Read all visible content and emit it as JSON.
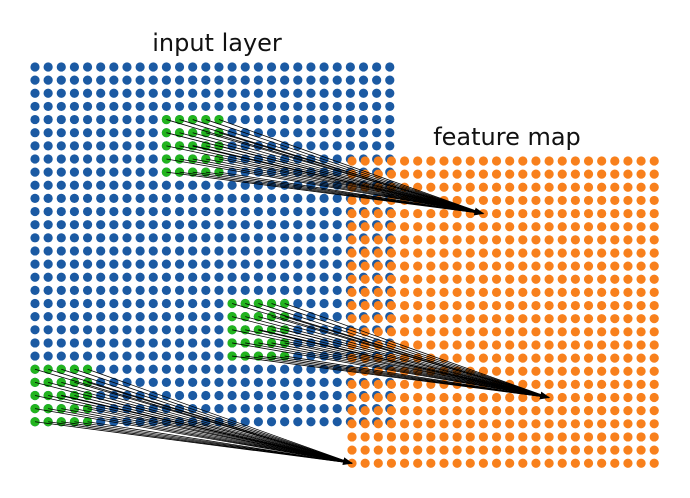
{
  "labels": {
    "input_layer": "input layer",
    "feature_map": "feature map"
  },
  "grids": {
    "input": {
      "cols": 28,
      "rows": 28
    },
    "feature": {
      "cols": 24,
      "rows": 24
    }
  },
  "receptive_fields": [
    {
      "name": "receptive-field-top",
      "col": 10,
      "row": 4,
      "size": 5,
      "target_col": 10,
      "target_row": 4
    },
    {
      "name": "receptive-field-middle",
      "col": 15,
      "row": 18,
      "size": 5,
      "target_col": 15,
      "target_row": 18
    },
    {
      "name": "receptive-field-bottom",
      "col": 0,
      "row": 23,
      "size": 5,
      "target_col": 0,
      "target_row": 23
    }
  ],
  "colors": {
    "input_dot": "#1b5aa3",
    "feature_dot": "#f8801c",
    "receptive_dot": "#22b41e",
    "arrow": "#000000"
  }
}
